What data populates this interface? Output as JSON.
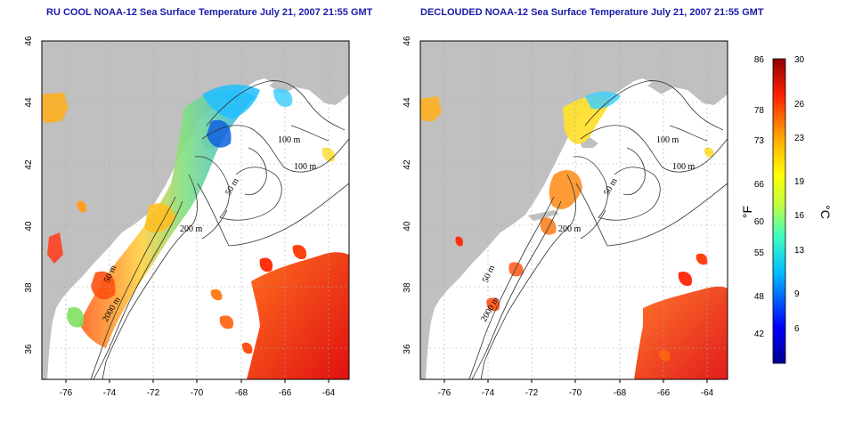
{
  "panels": [
    {
      "title": "RU COOL NOAA-12 Sea Surface Temperature July 21, 2007 21:55 GMT",
      "contour_labels": [
        "100 m",
        "100 m",
        "50 m",
        "200 m",
        "50 m",
        "2000 m"
      ]
    },
    {
      "title": "DECLOUDED NOAA-12 Sea Surface Temperature July 21, 2007 21:55 GMT",
      "contour_labels": [
        "100 m",
        "100 m",
        "50 m",
        "200 m",
        "50 m",
        "2000 m"
      ]
    }
  ],
  "map_axes": {
    "x_ticks": [
      "-76",
      "-74",
      "-72",
      "-70",
      "-68",
      "-66",
      "-64"
    ],
    "y_ticks": [
      "46",
      "44",
      "42",
      "40",
      "38",
      "36"
    ],
    "lon_range": [
      -77,
      -63
    ],
    "lat_range": [
      35,
      46
    ]
  },
  "colorbar": {
    "f_label": "°F",
    "c_label": "°C",
    "f_ticks": [
      "86",
      "78",
      "73",
      "66",
      "60",
      "55",
      "48",
      "42"
    ],
    "c_ticks": [
      "30",
      "26",
      "23",
      "19",
      "16",
      "13",
      "9",
      "6"
    ]
  },
  "colors": {
    "land": "#c0c0c0",
    "warm": "#e8301a",
    "title": "#1a1aa8"
  }
}
